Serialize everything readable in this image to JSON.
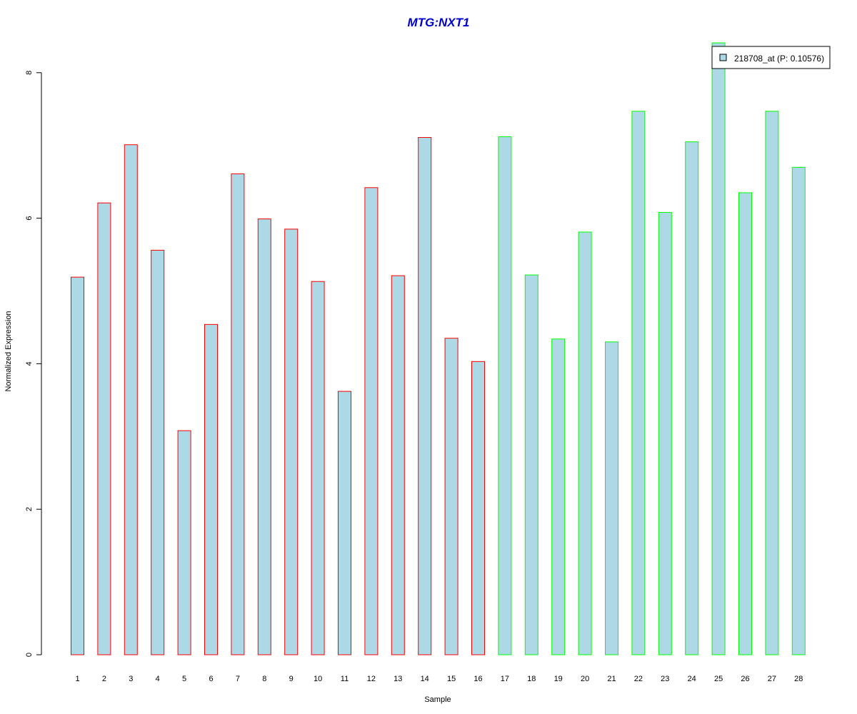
{
  "chart_data": {
    "type": "bar",
    "title": "MTG:NXT1",
    "title_color": "#0000cc",
    "xlabel": "Sample",
    "ylabel": "Normalized Expression",
    "ylim": [
      0,
      8.4
    ],
    "yticks": [
      0,
      2,
      4,
      6,
      8
    ],
    "grid": false,
    "legend_position": "top-right",
    "fill_color": "#add8e6",
    "categories": [
      "1",
      "2",
      "3",
      "4",
      "5",
      "6",
      "7",
      "8",
      "9",
      "10",
      "11",
      "12",
      "13",
      "14",
      "15",
      "16",
      "17",
      "18",
      "19",
      "20",
      "21",
      "22",
      "23",
      "24",
      "25",
      "26",
      "27",
      "28"
    ],
    "series": [
      {
        "name": "218708_at (P: 0.10576)",
        "values": [
          5.19,
          6.21,
          7.01,
          5.56,
          3.08,
          4.54,
          6.61,
          5.99,
          5.85,
          5.13,
          3.62,
          6.42,
          5.21,
          7.11,
          4.35,
          4.03,
          7.12,
          5.22,
          4.34,
          5.81,
          4.3,
          7.47,
          6.08,
          7.05,
          8.41,
          6.35,
          7.47,
          6.7
        ],
        "outline_colors": [
          "#ff0000",
          "#ff0000",
          "#ff0000",
          "#ff0000",
          "#ff0000",
          "#ff0000",
          "#ff0000",
          "#ff0000",
          "#ff0000",
          "#ff0000",
          "#ff0000",
          "#ff0000",
          "#ff0000",
          "#ff0000",
          "#ff0000",
          "#ff0000",
          "#00ff00",
          "#00ff00",
          "#00ff00",
          "#00ff00",
          "#00ff00",
          "#00ff00",
          "#00ff00",
          "#00ff00",
          "#00ff00",
          "#00ff00",
          "#00ff00",
          "#00ff00"
        ]
      }
    ]
  }
}
